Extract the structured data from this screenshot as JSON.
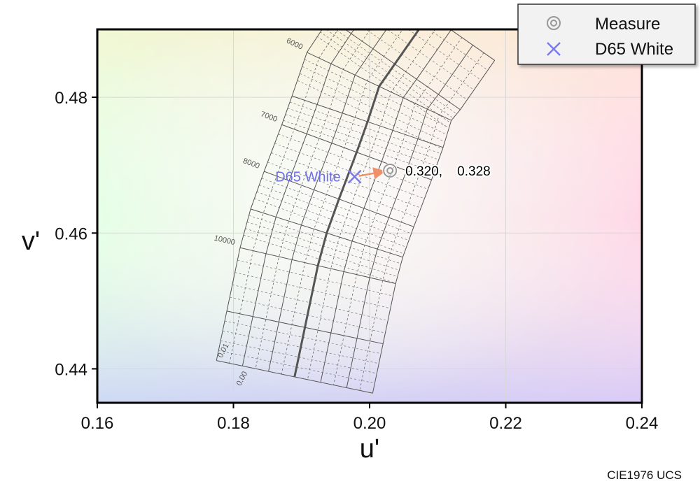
{
  "chart_data": {
    "type": "scatter",
    "title": "",
    "xlabel": "u'",
    "ylabel": "v'",
    "caption": "CIE1976 UCS",
    "xlim": [
      0.16,
      0.24
    ],
    "ylim": [
      0.435,
      0.49
    ],
    "xticks": [
      0.16,
      0.18,
      0.2,
      0.22,
      0.24
    ],
    "xtick_labels": [
      "0.16",
      "0.18",
      "0.20",
      "0.22",
      "0.24"
    ],
    "yticks": [
      0.44,
      0.46,
      0.48
    ],
    "ytick_labels": [
      "0.44",
      "0.46",
      "0.48"
    ],
    "grid": true,
    "legend_position": "top-right",
    "series": [
      {
        "name": "Measure",
        "marker": "double-circle",
        "color": "#999999",
        "points": [
          {
            "x": 0.203,
            "y": 0.4692
          }
        ]
      },
      {
        "name": "D65 White",
        "marker": "x",
        "color": "#7a7aee",
        "points": [
          {
            "x": 0.1978,
            "y": 0.4683
          }
        ]
      }
    ],
    "measure_readout": {
      "x_text": "0.320,",
      "y_text": "0.328"
    },
    "d65_label": "D65 White",
    "arrow_color": "#f0906a",
    "planckian_locus": {
      "duv_labels": [
        "0.01",
        "0.00"
      ],
      "cct_labels": [
        "6000",
        "7000",
        "8000",
        "10000"
      ],
      "isotherms": [
        {
          "cct": 5500,
          "u": 0.2037,
          "v": 0.4849
        },
        {
          "cct": 6000,
          "u": 0.2014,
          "v": 0.4816
        },
        {
          "cct": 6500,
          "u": 0.1997,
          "v": 0.4764
        },
        {
          "cct": 7000,
          "u": 0.1981,
          "v": 0.4719
        },
        {
          "cct": 8000,
          "u": 0.1955,
          "v": 0.465
        },
        {
          "cct": 9000,
          "u": 0.1937,
          "v": 0.46
        },
        {
          "cct": 10000,
          "u": 0.1924,
          "v": 0.4552
        },
        {
          "cct": 12000,
          "u": 0.1905,
          "v": 0.4461
        }
      ]
    }
  }
}
